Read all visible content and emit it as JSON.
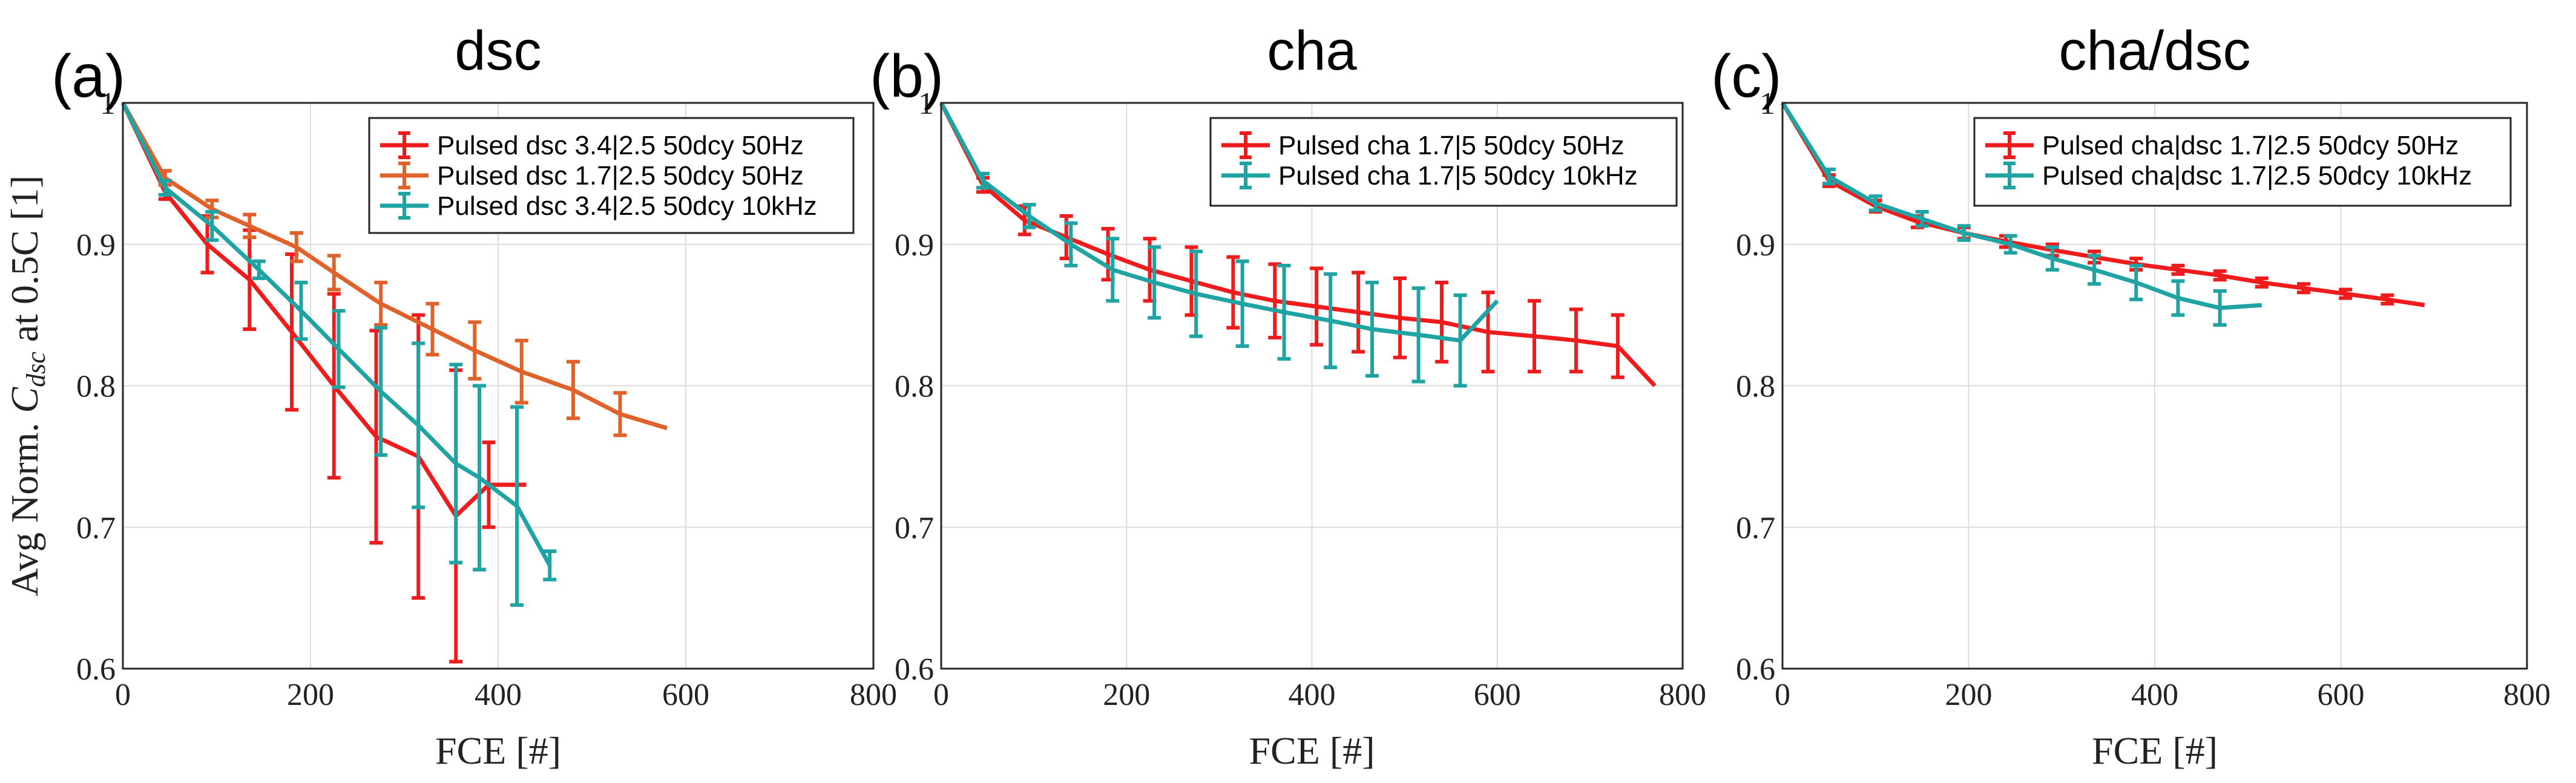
{
  "chart_data": [
    {
      "type": "line",
      "label": "(a)",
      "title": "dsc",
      "xlabel": "FCE [#]",
      "ylabel": "Avg Norm. C_dsc at 0.5C [1]",
      "ylabel_parts": {
        "pre": "Avg Norm. ",
        "sym": "C",
        "sub": "dsc",
        "post": " at 0.5C [1]"
      },
      "xlim": [
        0,
        800
      ],
      "ylim": [
        0.6,
        1.0
      ],
      "xticks": [
        "0",
        "200",
        "400",
        "600",
        "800"
      ],
      "yticks": [
        "0.6",
        "0.7",
        "0.8",
        "0.9",
        "1"
      ],
      "grid": true,
      "legend_position": "top-right",
      "series": [
        {
          "name": "Pulsed dsc 3.4|2.5 50dcy 50Hz",
          "color": "#ee1c1c",
          "x": [
            0,
            45,
            90,
            135,
            180,
            225,
            270,
            315,
            355,
            390,
            430
          ],
          "y": [
            1.0,
            0.937,
            0.9,
            0.875,
            0.838,
            0.8,
            0.764,
            0.75,
            0.708,
            0.73,
            0.73
          ],
          "err": [
            0,
            0.005,
            0.02,
            0.035,
            0.055,
            0.065,
            0.075,
            0.1,
            0.103,
            0.03,
            0
          ]
        },
        {
          "name": "Pulsed dsc 1.7|2.5 50dcy 50Hz",
          "color": "#e0622b",
          "x": [
            0,
            45,
            95,
            135,
            185,
            225,
            275,
            330,
            375,
            425,
            480,
            530,
            580
          ],
          "y": [
            1.0,
            0.947,
            0.925,
            0.913,
            0.898,
            0.88,
            0.858,
            0.84,
            0.825,
            0.81,
            0.797,
            0.78,
            0.77
          ],
          "err": [
            0,
            0.005,
            0.006,
            0.008,
            0.01,
            0.012,
            0.015,
            0.018,
            0.02,
            0.022,
            0.02,
            0.015,
            0
          ]
        },
        {
          "name": "Pulsed dsc 3.4|2.5 50dcy 10kHz",
          "color": "#1fa3a3",
          "x": [
            0,
            45,
            95,
            145,
            190,
            230,
            275,
            315,
            355,
            380,
            420,
            455
          ],
          "y": [
            1.0,
            0.94,
            0.913,
            0.882,
            0.853,
            0.826,
            0.796,
            0.772,
            0.745,
            0.735,
            0.715,
            0.673
          ],
          "err": [
            0,
            0.005,
            0.01,
            0.006,
            0.02,
            0.027,
            0.045,
            0.058,
            0.07,
            0.065,
            0.07,
            0.01
          ]
        }
      ]
    },
    {
      "type": "line",
      "label": "(b)",
      "title": "cha",
      "xlabel": "FCE [#]",
      "xlim": [
        0,
        800
      ],
      "ylim": [
        0.6,
        1.0
      ],
      "xticks": [
        "0",
        "200",
        "400",
        "600",
        "800"
      ],
      "yticks": [
        "0.6",
        "0.7",
        "0.8",
        "0.9",
        "1"
      ],
      "grid": true,
      "legend_position": "top-right",
      "series": [
        {
          "name": "Pulsed cha 1.7|5 50dcy 50Hz",
          "color": "#ee1c1c",
          "x": [
            0,
            45,
            90,
            135,
            180,
            225,
            270,
            315,
            360,
            405,
            450,
            495,
            540,
            590,
            640,
            685,
            730,
            770
          ],
          "y": [
            1.0,
            0.942,
            0.917,
            0.905,
            0.893,
            0.882,
            0.874,
            0.866,
            0.86,
            0.856,
            0.852,
            0.848,
            0.845,
            0.838,
            0.835,
            0.832,
            0.828,
            0.8
          ],
          "err": [
            0,
            0.005,
            0.01,
            0.015,
            0.018,
            0.022,
            0.024,
            0.025,
            0.026,
            0.027,
            0.028,
            0.028,
            0.028,
            0.028,
            0.025,
            0.022,
            0.022,
            0
          ]
        },
        {
          "name": "Pulsed cha 1.7|5 50dcy 10kHz",
          "color": "#1fa3a3",
          "x": [
            0,
            45,
            95,
            140,
            185,
            230,
            275,
            325,
            370,
            420,
            465,
            515,
            560,
            600
          ],
          "y": [
            1.0,
            0.945,
            0.92,
            0.9,
            0.882,
            0.873,
            0.865,
            0.858,
            0.852,
            0.846,
            0.84,
            0.836,
            0.832,
            0.86
          ],
          "err": [
            0,
            0.005,
            0.008,
            0.015,
            0.022,
            0.025,
            0.03,
            0.03,
            0.033,
            0.033,
            0.033,
            0.033,
            0.032,
            0
          ]
        }
      ]
    },
    {
      "type": "line",
      "label": "(c)",
      "title": "cha/dsc",
      "xlabel": "FCE [#]",
      "xlim": [
        0,
        800
      ],
      "ylim": [
        0.6,
        1.0
      ],
      "xticks": [
        "0",
        "200",
        "400",
        "600",
        "800"
      ],
      "yticks": [
        "0.6",
        "0.7",
        "0.8",
        "0.9",
        "1"
      ],
      "grid": true,
      "legend_position": "top-right",
      "series": [
        {
          "name": "Pulsed cha|dsc 1.7|2.5 50dcy 50Hz",
          "color": "#ee1c1c",
          "x": [
            0,
            50,
            100,
            145,
            195,
            240,
            290,
            335,
            380,
            425,
            470,
            515,
            560,
            605,
            650,
            690
          ],
          "y": [
            1.0,
            0.945,
            0.927,
            0.916,
            0.908,
            0.902,
            0.896,
            0.891,
            0.886,
            0.882,
            0.878,
            0.873,
            0.869,
            0.865,
            0.861,
            0.857
          ],
          "err": [
            0,
            0.004,
            0.004,
            0.004,
            0.004,
            0.004,
            0.004,
            0.004,
            0.004,
            0.003,
            0.003,
            0.003,
            0.003,
            0.003,
            0.003,
            0
          ]
        },
        {
          "name": "Pulsed cha|dsc 1.7|2.5 50dcy 10kHz",
          "color": "#1fa3a3",
          "x": [
            0,
            50,
            100,
            150,
            195,
            245,
            290,
            335,
            380,
            425,
            470,
            515
          ],
          "y": [
            1.0,
            0.948,
            0.929,
            0.918,
            0.908,
            0.9,
            0.89,
            0.882,
            0.873,
            0.862,
            0.855,
            0.857
          ],
          "err": [
            0,
            0.005,
            0.005,
            0.005,
            0.005,
            0.006,
            0.008,
            0.01,
            0.012,
            0.012,
            0.012,
            0
          ]
        }
      ]
    }
  ]
}
